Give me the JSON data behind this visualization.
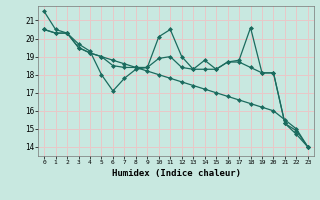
{
  "xlabel": "Humidex (Indice chaleur)",
  "xlim": [
    -0.5,
    23.5
  ],
  "ylim": [
    13.5,
    21.8
  ],
  "yticks": [
    14,
    15,
    16,
    17,
    18,
    19,
    20,
    21
  ],
  "xticks": [
    0,
    1,
    2,
    3,
    4,
    5,
    6,
    7,
    8,
    9,
    10,
    11,
    12,
    13,
    14,
    15,
    16,
    17,
    18,
    19,
    20,
    21,
    22,
    23
  ],
  "bg_color": "#c8e8e0",
  "grid_color": "#e8c8c8",
  "line_color": "#1a6b5e",
  "line1": [
    21.5,
    20.5,
    20.3,
    19.7,
    19.3,
    18.0,
    17.1,
    17.8,
    18.3,
    18.4,
    20.1,
    20.5,
    19.0,
    18.3,
    18.8,
    18.3,
    18.7,
    18.8,
    20.6,
    18.1,
    18.1,
    15.3,
    14.7,
    14.0
  ],
  "line2": [
    20.5,
    20.3,
    20.3,
    19.5,
    19.2,
    19.0,
    18.8,
    18.6,
    18.4,
    18.2,
    18.0,
    17.8,
    17.6,
    17.4,
    17.2,
    17.0,
    16.8,
    16.6,
    16.4,
    16.2,
    16.0,
    15.5,
    15.0,
    14.0
  ],
  "line3": [
    20.5,
    20.3,
    20.3,
    19.5,
    19.2,
    19.0,
    18.5,
    18.4,
    18.4,
    18.4,
    18.9,
    19.0,
    18.4,
    18.3,
    18.3,
    18.3,
    18.7,
    18.7,
    18.4,
    18.1,
    18.1,
    15.3,
    14.9,
    14.0
  ]
}
